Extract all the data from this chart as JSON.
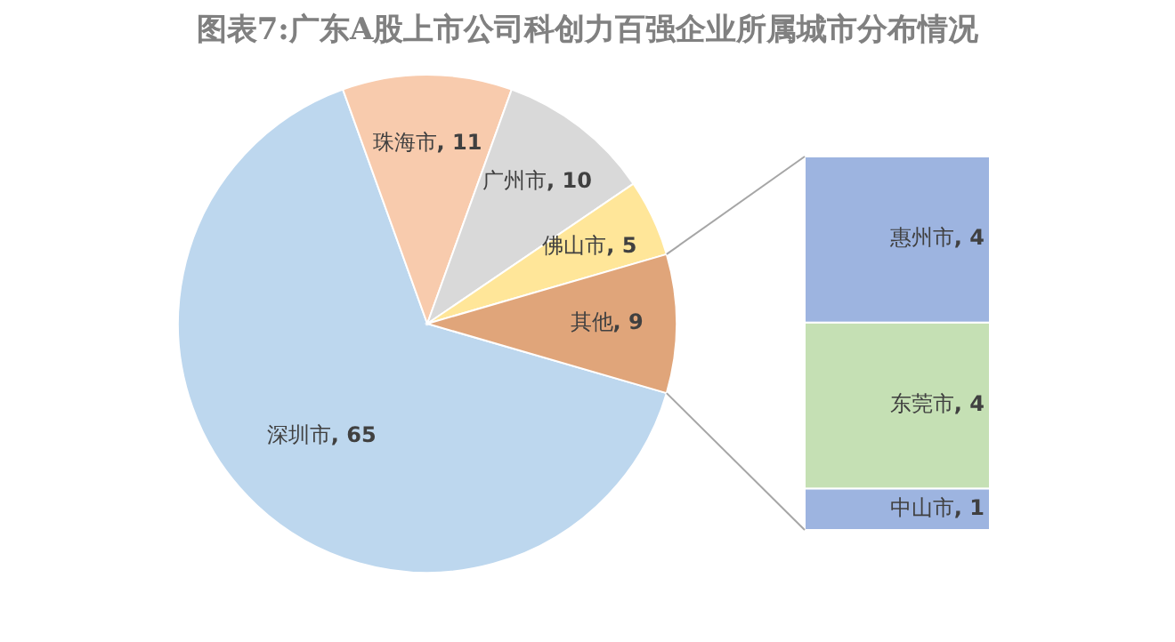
{
  "chart_data": [
    {
      "type": "pie",
      "title": "图表7:广东A股上市公司科创力百强企业所属城市分布情况",
      "categories": [
        "深圳市",
        "珠海市",
        "广州市",
        "佛山市",
        "其他"
      ],
      "values": [
        65,
        11,
        10,
        5,
        9
      ],
      "value_labels": [
        ", 65",
        ", 11",
        ", 10",
        ", 5",
        ", 9"
      ],
      "colors": [
        "#bdd7ee",
        "#f8cbad",
        "#d9d9d9",
        "#ffe699",
        "#e0a57a"
      ]
    },
    {
      "type": "bar",
      "stacked": true,
      "categories": [
        null
      ],
      "series": [
        {
          "name": "中山市",
          "color": "#9db4e0",
          "values": [
            1
          ],
          "value_labels": [
            ", 1"
          ]
        },
        {
          "name": "东莞市",
          "color": "#c5e0b4",
          "values": [
            4
          ],
          "value_labels": [
            ", 4"
          ]
        },
        {
          "name": "惠州市",
          "color": "#9db4e0",
          "values": [
            4
          ],
          "value_labels": [
            ", 4"
          ]
        }
      ]
    }
  ]
}
